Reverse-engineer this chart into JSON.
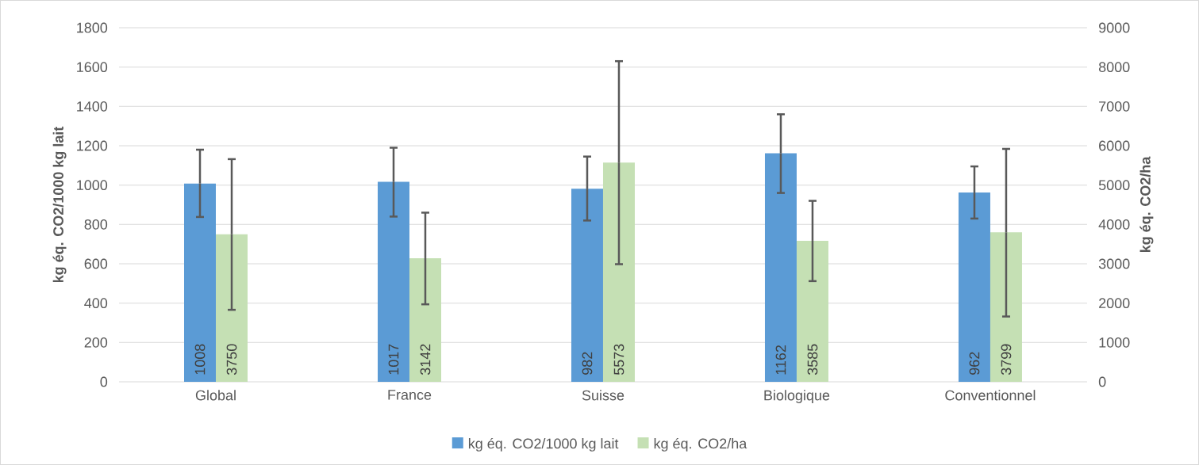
{
  "chart_data": {
    "type": "bar",
    "categories": [
      "Global",
      "France",
      "Suisse",
      "Biologique",
      "Conventionnel"
    ],
    "series": [
      {
        "name": "kg éq. CO2/1000 kg lait",
        "color": "#5b9bd5",
        "values": [
          1008,
          1017,
          982,
          1162,
          962
        ],
        "errors": [
          [
            838,
            1180
          ],
          [
            840,
            1190
          ],
          [
            820,
            1145
          ],
          [
            960,
            1360
          ],
          [
            830,
            1095
          ]
        ]
      },
      {
        "name": "kg éq. CO2/ha",
        "color": "#c5e0b4",
        "axis": "y2",
        "values": [
          3750,
          3142,
          5573,
          3585,
          3799
        ],
        "errors": [
          [
            1830,
            5660
          ],
          [
            1970,
            4300
          ],
          [
            2990,
            8150
          ],
          [
            2560,
            4600
          ],
          [
            1660,
            5920
          ]
        ]
      }
    ],
    "ylabel": "kg éq. CO2/1000 kg lait",
    "y2label": "kg éq. CO2/ha",
    "ylim": [
      0,
      1800
    ],
    "yticks": [
      0,
      200,
      400,
      600,
      800,
      1000,
      1200,
      1400,
      1600,
      1800
    ],
    "y2lim": [
      0,
      9000
    ],
    "y2ticks": [
      0,
      1000,
      2000,
      3000,
      4000,
      5000,
      6000,
      7000,
      8000,
      9000
    ],
    "grid": "y",
    "legend": "bottom",
    "data_labels": true
  }
}
